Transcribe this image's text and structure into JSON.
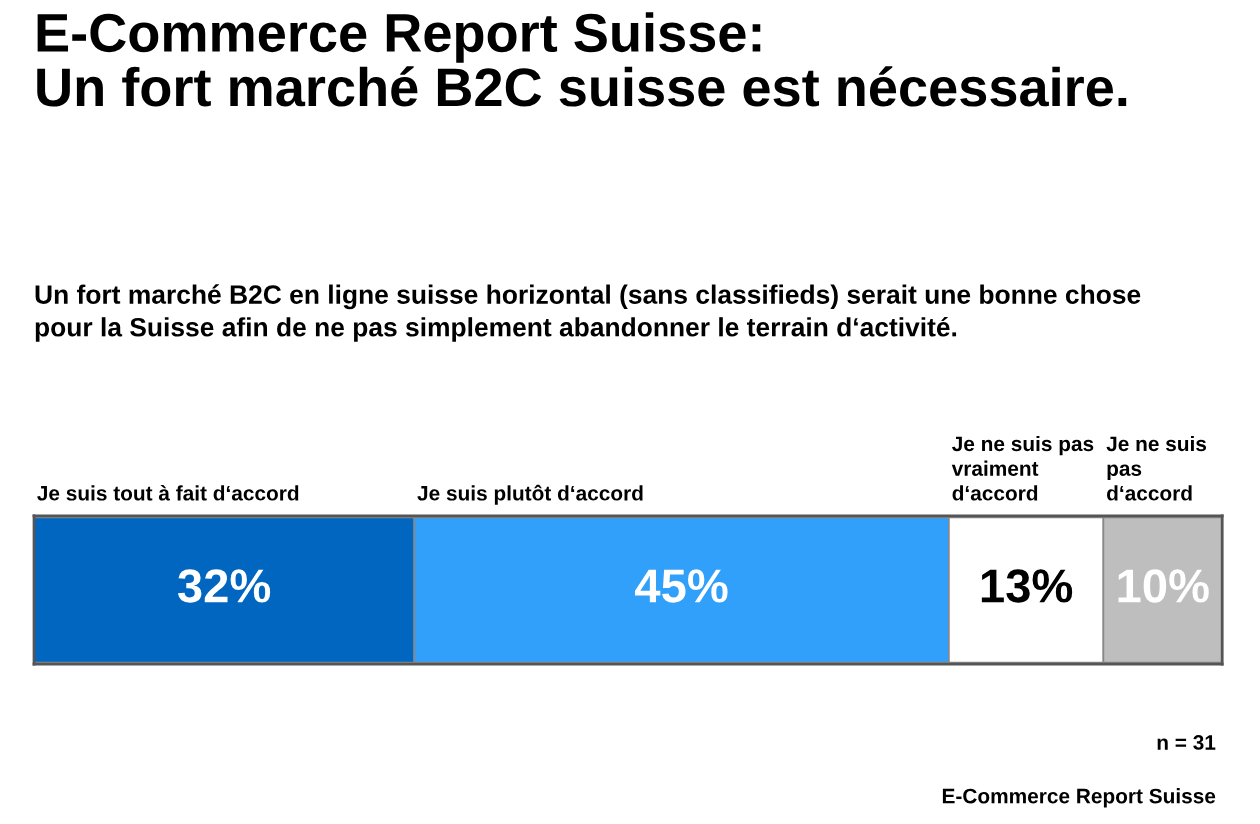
{
  "chart_data": {
    "type": "bar",
    "orientation": "horizontal",
    "stacked": true,
    "title": "E-Commerce Report Suisse:\nUn fort marché B2C suisse est nécessaire.",
    "subtitle": "Un fort marché B2C en ligne suisse horizontal (sans classifieds) serait une bonne chose\npour la Suisse afin de ne pas simplement abandonner le terrain d‘activité.",
    "categories": [
      null
    ],
    "series": [
      {
        "name": "Je suis tout à fait d‘accord",
        "color": "#0066c0",
        "values": [
          32
        ],
        "value_labels": [
          "32%"
        ]
      },
      {
        "name": "Je suis plutôt d‘accord",
        "color": "#30a0fa",
        "values": [
          45
        ],
        "value_labels": [
          "45%"
        ]
      },
      {
        "name": "Je ne suis pas\nvraiment\nd‘accord",
        "color": "#ffffff",
        "values": [
          13
        ],
        "value_labels": [
          "13%"
        ]
      },
      {
        "name": "Je ne suis\npas\nd‘accord",
        "color": "#bebebe",
        "values": [
          10
        ],
        "value_labels": [
          "10%"
        ]
      }
    ],
    "xlim": [
      0,
      100
    ],
    "annotations": [
      "n = 31",
      "E-Commerce Report Suisse"
    ]
  }
}
